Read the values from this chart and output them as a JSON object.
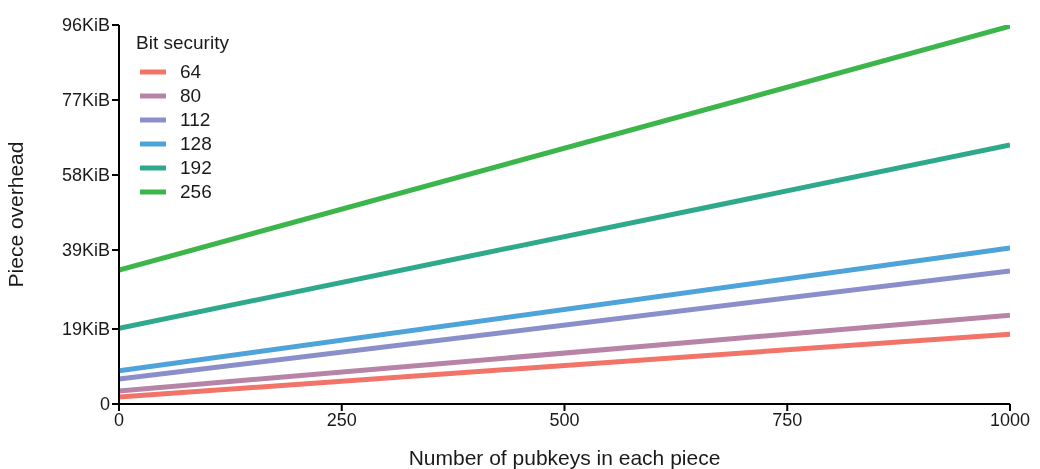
{
  "chart_data": {
    "type": "line",
    "xlabel": "Number of pubkeys in each piece",
    "ylabel": "Piece overhead",
    "legend_title": "Bit security",
    "legend": "top left",
    "grid": false,
    "marker": "none",
    "line_style": "solid",
    "x": [
      0,
      1000
    ],
    "xlim": [
      0,
      1000
    ],
    "xticks": [
      0,
      250,
      500,
      750,
      1000
    ],
    "ylim": [
      0,
      96
    ],
    "yticks": [
      0,
      {
        "value": 19,
        "label": "19KiB"
      },
      {
        "value": 39,
        "label": "39KiB"
      },
      {
        "value": 58,
        "label": "58KiB"
      },
      {
        "value": 77,
        "label": "77KiB"
      },
      {
        "value": 96,
        "label": "96KiB"
      }
    ],
    "series": [
      {
        "name": "64",
        "color": "#f27468",
        "values": [
          1.8,
          17.7
        ]
      },
      {
        "name": "80",
        "color": "#b784a7",
        "values": [
          3.3,
          22.5
        ]
      },
      {
        "name": "112",
        "color": "#8a8fca",
        "values": [
          6.3,
          33.7
        ]
      },
      {
        "name": "128",
        "color": "#4ea3d8",
        "values": [
          8.4,
          39.5
        ]
      },
      {
        "name": "192",
        "color": "#2fa98c",
        "values": [
          19.2,
          65.6
        ]
      },
      {
        "name": "256",
        "color": "#3cb54a",
        "values": [
          33.9,
          95.7
        ]
      }
    ]
  }
}
